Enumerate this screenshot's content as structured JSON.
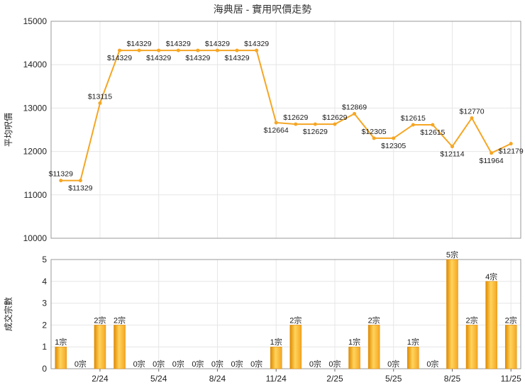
{
  "chart_data": [
    {
      "type": "line",
      "title": "海典居 - 實用呎價走勢",
      "ylabel": "平均呎價",
      "ylim": [
        10000,
        15000
      ],
      "yticks": [
        "10000",
        "11000",
        "12000",
        "13000",
        "14000",
        "15000"
      ],
      "line_color": "#f5a623",
      "grid": true,
      "points": [
        {
          "x": 0,
          "y": 11329,
          "label": "$11329"
        },
        {
          "x": 1,
          "y": 11329,
          "label": "$11329"
        },
        {
          "x": 2,
          "y": 13115,
          "label": "$13115"
        },
        {
          "x": 3,
          "y": 14329,
          "label": "$14329"
        },
        {
          "x": 4,
          "y": 14329,
          "label": "$14329"
        },
        {
          "x": 5,
          "y": 14329,
          "label": "$14329"
        },
        {
          "x": 6,
          "y": 14329,
          "label": "$14329"
        },
        {
          "x": 7,
          "y": 14329,
          "label": "$14329"
        },
        {
          "x": 8,
          "y": 14329,
          "label": "$14329"
        },
        {
          "x": 9,
          "y": 14329,
          "label": "$14329"
        },
        {
          "x": 10,
          "y": 14329,
          "label": "$14329"
        },
        {
          "x": 11,
          "y": 12664,
          "label": "$12664"
        },
        {
          "x": 12,
          "y": 12629,
          "label": "$12629"
        },
        {
          "x": 13,
          "y": 12629,
          "label": "$12629"
        },
        {
          "x": 14,
          "y": 12629,
          "label": "$12629"
        },
        {
          "x": 15,
          "y": 12869,
          "label": "$12869"
        },
        {
          "x": 16,
          "y": 12305,
          "label": "$12305"
        },
        {
          "x": 17,
          "y": 12305,
          "label": "$12305"
        },
        {
          "x": 18,
          "y": 12615,
          "label": "$12615"
        },
        {
          "x": 19,
          "y": 12615,
          "label": "$12615"
        },
        {
          "x": 20,
          "y": 12114,
          "label": "$12114"
        },
        {
          "x": 21,
          "y": 12770,
          "label": "$12770"
        },
        {
          "x": 22,
          "y": 11964,
          "label": "$11964"
        },
        {
          "x": 23,
          "y": 12179,
          "label": "$12179"
        }
      ]
    },
    {
      "type": "bar",
      "ylabel": "成交宗數",
      "ylim": [
        0,
        5
      ],
      "yticks": [
        "0",
        "1",
        "2",
        "3",
        "4",
        "5"
      ],
      "bar_color": "#f5a623",
      "grid": true,
      "values": [
        1,
        0,
        2,
        2,
        0,
        0,
        0,
        0,
        0,
        0,
        0,
        1,
        2,
        0,
        0,
        1,
        2,
        0,
        1,
        0,
        5,
        2,
        4,
        2
      ],
      "labels": [
        "1宗",
        "0宗",
        "2宗",
        "2宗",
        "0宗",
        "0宗",
        "0宗",
        "0宗",
        "0宗",
        "0宗",
        "0宗",
        "1宗",
        "2宗",
        "0宗",
        "0宗",
        "1宗",
        "2宗",
        "0宗",
        "1宗",
        "0宗",
        "5宗",
        "2宗",
        "4宗",
        "2宗"
      ],
      "x_ticks": [
        {
          "index": 2,
          "label": "2/24"
        },
        {
          "index": 5,
          "label": "5/24"
        },
        {
          "index": 8,
          "label": "8/24"
        },
        {
          "index": 11,
          "label": "11/24"
        },
        {
          "index": 14,
          "label": "2/25"
        },
        {
          "index": 17,
          "label": "5/25"
        },
        {
          "index": 20,
          "label": "8/25"
        },
        {
          "index": 23,
          "label": "11/25"
        }
      ]
    }
  ]
}
